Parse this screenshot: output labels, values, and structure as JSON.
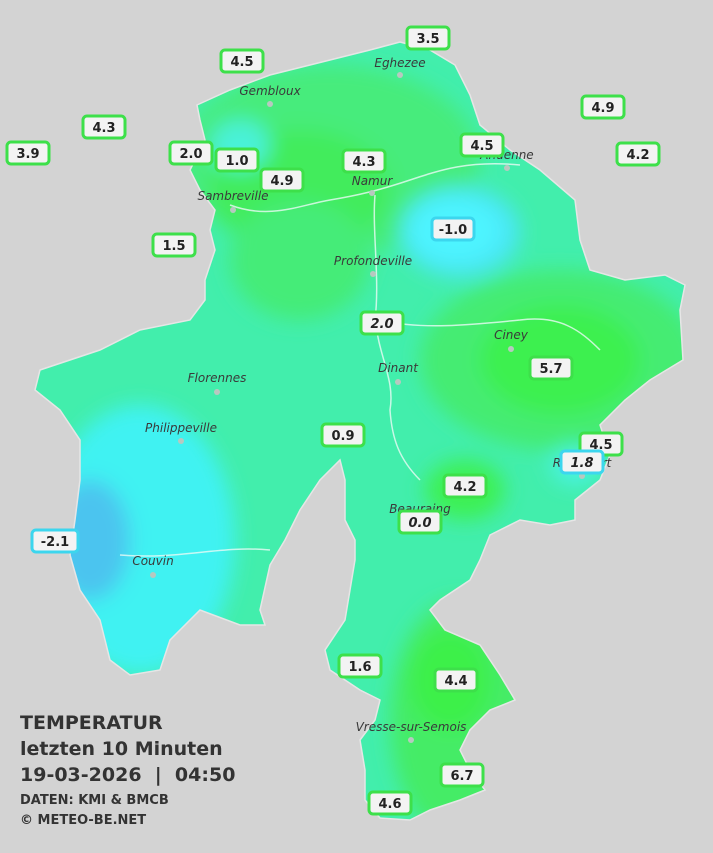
{
  "map": {
    "legend": {
      "title": "TEMPERATUR",
      "subtitle": "letzten 10 Minuten",
      "datetime": "19-03-2026  |  04:50",
      "source": "DATEN: KMI & BMCB",
      "copyright": "© METEO-BE.NET"
    },
    "towns": [
      "Eghezee",
      "Gembloux",
      "Andenne",
      "Namur",
      "Sambreville",
      "Profondeville",
      "Ciney",
      "Dinant",
      "Florennes",
      "Philippeville",
      "Rochefort",
      "Beauraing",
      "Couvin",
      "Vresse-sur-Semois"
    ],
    "stations": [
      "3.5",
      "4.5",
      "4.9",
      "4.3",
      "2.0",
      "1.0",
      "4.3",
      "4.5",
      "4.2",
      "3.9",
      "4.9",
      "-1.0",
      "1.5",
      "2.0",
      "5.7",
      "0.9",
      "4.5",
      "1.8",
      "4.2",
      "0.0",
      "-2.1",
      "1.6",
      "4.4",
      "6.7",
      "4.6"
    ]
  }
}
